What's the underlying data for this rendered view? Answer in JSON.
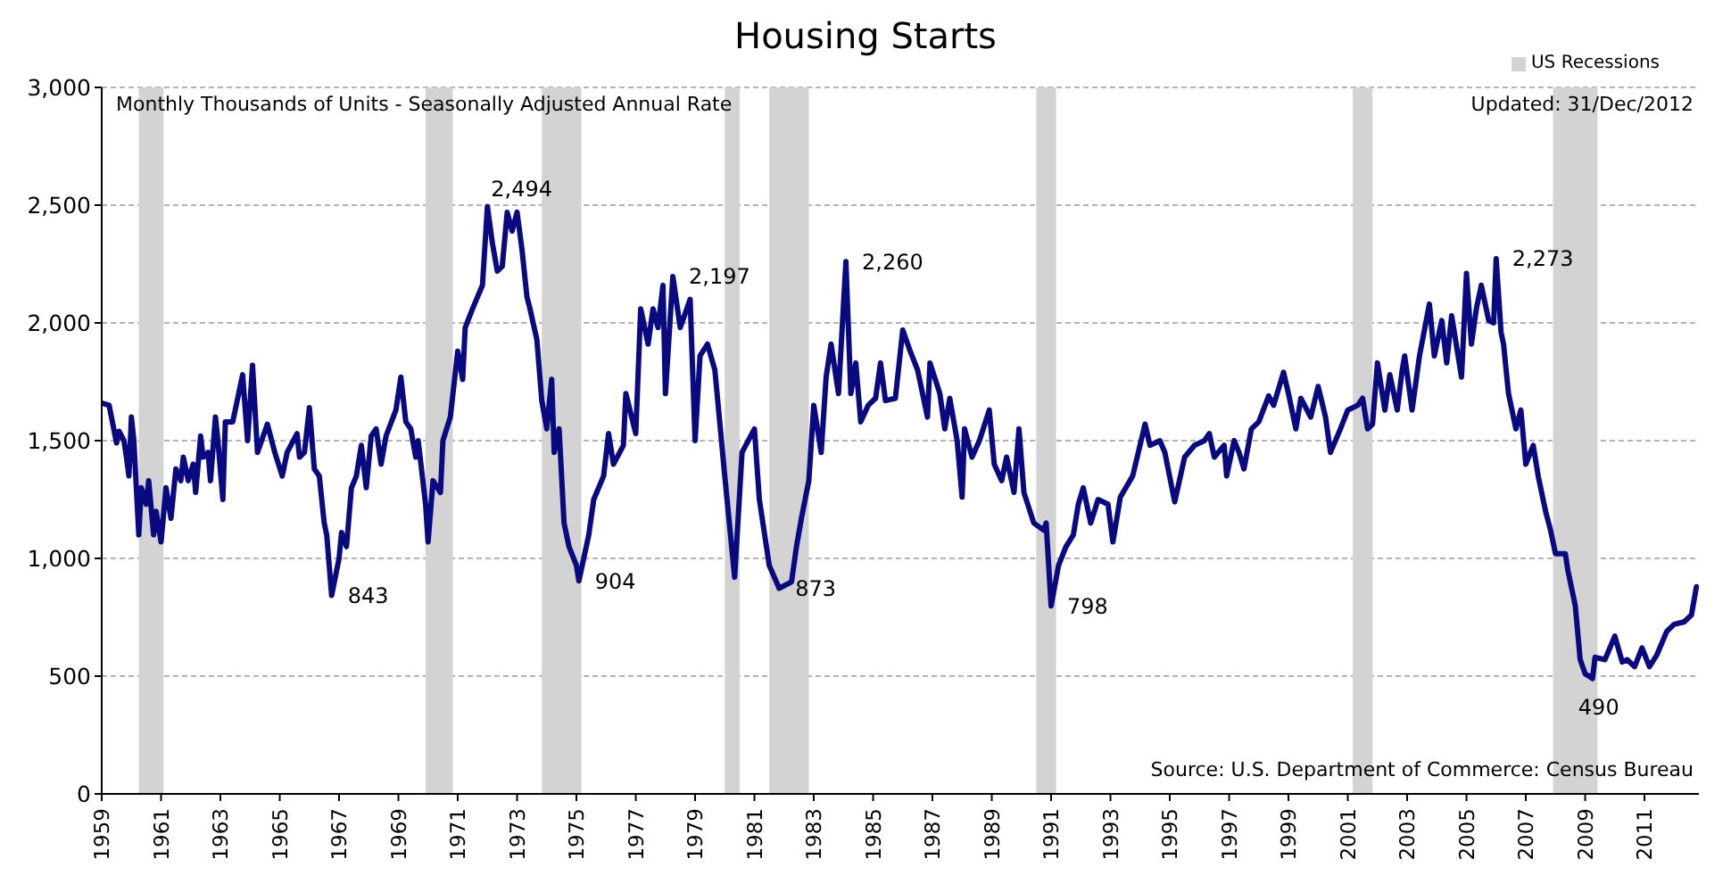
{
  "chart_data": {
    "type": "line",
    "title": "Housing Starts",
    "x": [
      "1959-01",
      "1959-04",
      "1959-07",
      "1959-08",
      "1959-10",
      "1959-11",
      "1959-12",
      "1960-01",
      "1960-02",
      "1960-04",
      "1960-05",
      "1960-07",
      "1960-08",
      "1960-10",
      "1960-11",
      "1961-01",
      "1961-03",
      "1961-05",
      "1961-07",
      "1961-09",
      "1961-10",
      "1961-12",
      "1962-02",
      "1962-03",
      "1962-05",
      "1962-06",
      "1962-08",
      "1962-09",
      "1962-11",
      "1962-12",
      "1963-02",
      "1963-03",
      "1963-06",
      "1963-10",
      "1963-12",
      "1964-02",
      "1964-04",
      "1964-08",
      "1964-11",
      "1965-02",
      "1965-04",
      "1965-08",
      "1965-09",
      "1965-11",
      "1966-01",
      "1966-03",
      "1966-05",
      "1966-07",
      "1966-08",
      "1966-10",
      "1967-01",
      "1967-02",
      "1967-04",
      "1967-06",
      "1967-08",
      "1967-10",
      "1967-12",
      "1968-02",
      "1968-04",
      "1968-06",
      "1968-08",
      "1968-12",
      "1969-02",
      "1969-04",
      "1969-06",
      "1969-08",
      "1969-09",
      "1969-12",
      "1970-01",
      "1970-03",
      "1970-06",
      "1970-07",
      "1970-10",
      "1971-01",
      "1971-03",
      "1971-04",
      "1971-07",
      "1971-09",
      "1971-11",
      "1972-01",
      "1972-03",
      "1972-05",
      "1972-07",
      "1972-09",
      "1972-11",
      "1973-01",
      "1973-03",
      "1973-05",
      "1973-06",
      "1973-09",
      "1973-11",
      "1974-01",
      "1974-03",
      "1974-04",
      "1974-06",
      "1974-08",
      "1974-10",
      "1975-01",
      "1975-02",
      "1975-06",
      "1975-08",
      "1975-12",
      "1976-02",
      "1976-04",
      "1976-08",
      "1976-09",
      "1977-01",
      "1977-03",
      "1977-06",
      "1977-08",
      "1977-10",
      "1977-12",
      "1978-01",
      "1978-04",
      "1978-07",
      "1978-11",
      "1979-01",
      "1979-03",
      "1979-06",
      "1979-09",
      "1980-01",
      "1980-05",
      "1980-08",
      "1981-01",
      "1981-03",
      "1981-07",
      "1981-11",
      "1982-04",
      "1982-06",
      "1982-08",
      "1982-11",
      "1983-01",
      "1983-04",
      "1983-06",
      "1983-08",
      "1983-11",
      "1984-02",
      "1984-04",
      "1984-06",
      "1984-08",
      "1984-11",
      "1985-02",
      "1985-04",
      "1985-06",
      "1985-10",
      "1986-01",
      "1986-04",
      "1986-07",
      "1986-11",
      "1986-12",
      "1987-04",
      "1987-06",
      "1987-08",
      "1987-11",
      "1988-01",
      "1988-02",
      "1988-05",
      "1988-08",
      "1988-12",
      "1989-02",
      "1989-05",
      "1989-07",
      "1989-10",
      "1989-12",
      "1990-02",
      "1990-06",
      "1990-10",
      "1990-11",
      "1991-01",
      "1991-04",
      "1991-07",
      "1991-10",
      "1991-12",
      "1992-02",
      "1992-05",
      "1992-08",
      "1992-12",
      "1993-02",
      "1993-05",
      "1993-10",
      "1994-03",
      "1994-05",
      "1994-09",
      "1994-11",
      "1995-03",
      "1995-07",
      "1995-11",
      "1996-03",
      "1996-05",
      "1996-07",
      "1996-11",
      "1996-12",
      "1997-03",
      "1997-05",
      "1997-07",
      "1997-10",
      "1998-01",
      "1998-05",
      "1998-07",
      "1998-11",
      "1999-01",
      "1999-04",
      "1999-06",
      "1999-10",
      "2000-01",
      "2000-04",
      "2000-06",
      "2000-10",
      "2001-01",
      "2001-05",
      "2001-07",
      "2001-09",
      "2001-11",
      "2002-01",
      "2002-04",
      "2002-06",
      "2002-09",
      "2002-11",
      "2002-12",
      "2003-03",
      "2003-06",
      "2003-10",
      "2003-12",
      "2004-03",
      "2004-05",
      "2004-07",
      "2004-11",
      "2005-01",
      "2005-03",
      "2005-05",
      "2005-07",
      "2005-10",
      "2005-12",
      "2006-01",
      "2006-03",
      "2006-04",
      "2006-06",
      "2006-09",
      "2006-11",
      "2007-01",
      "2007-04",
      "2007-06",
      "2007-09",
      "2007-11",
      "2008-01",
      "2008-05",
      "2008-06",
      "2008-09",
      "2008-11",
      "2009-01",
      "2009-04",
      "2009-05",
      "2009-09",
      "2010-01",
      "2010-04",
      "2010-06",
      "2010-09",
      "2010-12",
      "2011-03",
      "2011-06",
      "2011-10",
      "2012-01",
      "2012-05",
      "2012-08",
      "2012-10"
    ],
    "values": [
      1660,
      1650,
      1490,
      1540,
      1500,
      1430,
      1350,
      1600,
      1500,
      1100,
      1300,
      1230,
      1330,
      1100,
      1200,
      1070,
      1300,
      1170,
      1380,
      1330,
      1430,
      1330,
      1400,
      1280,
      1520,
      1430,
      1450,
      1330,
      1600,
      1500,
      1250,
      1580,
      1580,
      1780,
      1500,
      1820,
      1450,
      1570,
      1450,
      1350,
      1450,
      1530,
      1430,
      1450,
      1640,
      1380,
      1350,
      1150,
      1100,
      843,
      1000,
      1110,
      1050,
      1300,
      1350,
      1480,
      1300,
      1520,
      1550,
      1400,
      1520,
      1630,
      1770,
      1580,
      1550,
      1430,
      1500,
      1230,
      1070,
      1330,
      1280,
      1500,
      1600,
      1880,
      1760,
      1980,
      2060,
      2110,
      2160,
      2494,
      2340,
      2220,
      2240,
      2470,
      2390,
      2470,
      2310,
      2110,
      2070,
      1930,
      1670,
      1550,
      1760,
      1450,
      1550,
      1150,
      1050,
      970,
      904,
      1100,
      1250,
      1350,
      1530,
      1400,
      1480,
      1700,
      1530,
      2060,
      1910,
      2060,
      1980,
      2160,
      1700,
      2197,
      1980,
      2100,
      1500,
      1860,
      1910,
      1800,
      1350,
      920,
      1450,
      1550,
      1250,
      970,
      873,
      900,
      1050,
      1170,
      1330,
      1650,
      1450,
      1770,
      1910,
      1700,
      2260,
      1700,
      1830,
      1580,
      1650,
      1680,
      1830,
      1670,
      1680,
      1970,
      1880,
      1800,
      1600,
      1830,
      1700,
      1550,
      1680,
      1500,
      1260,
      1550,
      1430,
      1500,
      1630,
      1400,
      1330,
      1430,
      1280,
      1550,
      1280,
      1150,
      1120,
      1150,
      798,
      970,
      1050,
      1100,
      1230,
      1300,
      1150,
      1250,
      1230,
      1070,
      1260,
      1350,
      1570,
      1480,
      1500,
      1450,
      1240,
      1430,
      1480,
      1500,
      1530,
      1430,
      1480,
      1350,
      1500,
      1450,
      1380,
      1550,
      1580,
      1690,
      1650,
      1790,
      1700,
      1550,
      1680,
      1600,
      1730,
      1600,
      1450,
      1550,
      1630,
      1650,
      1680,
      1550,
      1570,
      1830,
      1630,
      1780,
      1630,
      1800,
      1860,
      1630,
      1860,
      2080,
      1860,
      2010,
      1830,
      2030,
      1770,
      2210,
      1910,
      2060,
      2160,
      2010,
      2000,
      2273,
      1960,
      1910,
      1700,
      1550,
      1630,
      1400,
      1480,
      1350,
      1200,
      1120,
      1020,
      1020,
      950,
      800,
      570,
      510,
      490,
      580,
      570,
      670,
      560,
      570,
      540,
      620,
      540,
      590,
      690,
      720,
      730,
      760,
      880
    ],
    "color": "#0a0a80",
    "marker": "none",
    "line_style": "solid",
    "xlim": [
      "1959-01",
      "2012-11"
    ],
    "xticks": [
      "1959",
      "1961",
      "1963",
      "1965",
      "1967",
      "1969",
      "1971",
      "1973",
      "1975",
      "1977",
      "1979",
      "1981",
      "1983",
      "1985",
      "1987",
      "1989",
      "1991",
      "1993",
      "1995",
      "1997",
      "1999",
      "2001",
      "2003",
      "2005",
      "2007",
      "2009",
      "2011"
    ],
    "ylim": [
      0,
      3000
    ],
    "yticks": [
      0,
      500,
      {
        "value": 1000,
        "label": "1,000"
      },
      {
        "value": 1500,
        "label": "1,500"
      },
      {
        "value": 2000,
        "label": "2,000"
      },
      {
        "value": 2500,
        "label": "2,500"
      },
      {
        "value": 3000,
        "label": "3,000"
      }
    ],
    "grid": "y",
    "legend": "top right",
    "bands": [
      {
        "axis": "x",
        "from": "1960-04",
        "to": "1961-02",
        "label": "US Recessions",
        "color": "#d3d3d3"
      },
      {
        "axis": "x",
        "from": "1969-12",
        "to": "1970-11",
        "color": "#d3d3d3"
      },
      {
        "axis": "x",
        "from": "1973-11",
        "to": "1975-03",
        "color": "#d3d3d3"
      },
      {
        "axis": "x",
        "from": "1980-01",
        "to": "1980-07",
        "color": "#d3d3d3"
      },
      {
        "axis": "x",
        "from": "1981-07",
        "to": "1982-11",
        "color": "#d3d3d3"
      },
      {
        "axis": "x",
        "from": "1990-07",
        "to": "1991-03",
        "color": "#d3d3d3"
      },
      {
        "axis": "x",
        "from": "2001-03",
        "to": "2001-11",
        "color": "#d3d3d3"
      },
      {
        "axis": "x",
        "from": "2007-12",
        "to": "2009-06",
        "color": "#d3d3d3"
      }
    ],
    "annotations": [
      "Monthly Thousands of Units - Seasonally Adjusted Annual Rate",
      "Updated: 31/Dec/2012",
      "Source: U.S. Department of Commerce: Census Bureau",
      {
        "text": "843",
        "x": "1966-10",
        "y": 843
      },
      {
        "text": "2,494",
        "x": "1972-01",
        "y": 2494
      },
      {
        "text": "904",
        "x": "1975-02",
        "y": 904
      },
      {
        "text": "2,197",
        "x": "1978-04",
        "y": 2197
      },
      {
        "text": "873",
        "x": "1981-11",
        "y": 873
      },
      {
        "text": "2,260",
        "x": "1984-02",
        "y": 2260
      },
      {
        "text": "798",
        "x": "1991-01",
        "y": 798
      },
      {
        "text": "2,273",
        "x": "2006-01",
        "y": 2273
      },
      {
        "text": "490",
        "x": "2009-04",
        "y": 490
      }
    ]
  }
}
